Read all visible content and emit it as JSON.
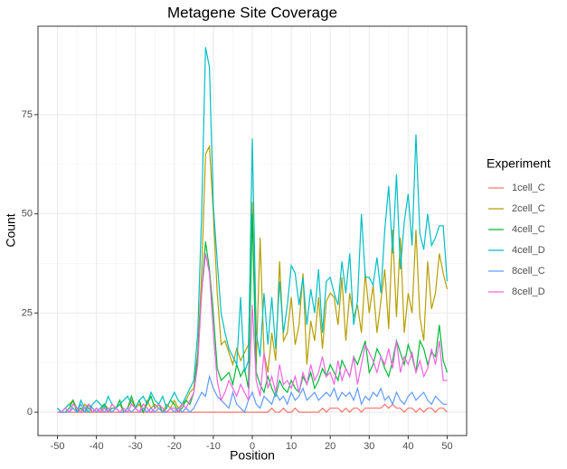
{
  "chart_data": {
    "type": "line",
    "title": "Metagene Site Coverage",
    "x_label": "Position",
    "y_label": "Count",
    "legend_title": "Experiment",
    "legend_position": "right",
    "grid": true,
    "minor_grid": true,
    "xlim": [
      -55,
      55
    ],
    "xticks": [
      -50,
      -40,
      -30,
      -20,
      -10,
      0,
      10,
      20,
      30,
      40,
      50
    ],
    "ylim": [
      -5.9,
      97.3
    ],
    "yticks": [
      0,
      25,
      50,
      75
    ],
    "x": [
      -50,
      -49,
      -48,
      -47,
      -46,
      -45,
      -44,
      -43,
      -42,
      -41,
      -40,
      -39,
      -38,
      -37,
      -36,
      -35,
      -34,
      -33,
      -32,
      -31,
      -30,
      -29,
      -28,
      -27,
      -26,
      -25,
      -24,
      -23,
      -22,
      -21,
      -20,
      -19,
      -18,
      -17,
      -16,
      -15,
      -14,
      -13,
      -12,
      -11,
      -10,
      -9,
      -8,
      -7,
      -6,
      -5,
      -4,
      -3,
      -2,
      -1,
      0,
      1,
      2,
      3,
      4,
      5,
      6,
      7,
      8,
      9,
      10,
      11,
      12,
      13,
      14,
      15,
      16,
      17,
      18,
      19,
      20,
      21,
      22,
      23,
      24,
      25,
      26,
      27,
      28,
      29,
      30,
      31,
      32,
      33,
      34,
      35,
      36,
      37,
      38,
      39,
      40,
      41,
      42,
      43,
      44,
      45,
      46,
      47,
      48,
      49,
      50
    ],
    "series": [
      {
        "name": "1cell_C",
        "color": "#F8766D",
        "values": [
          0,
          0,
          0,
          0,
          0,
          0,
          0,
          0,
          0,
          0,
          0,
          0,
          0,
          0,
          0,
          0,
          0,
          0,
          0,
          0,
          0,
          0,
          0,
          0,
          0,
          0,
          0,
          0,
          0,
          0,
          0,
          0,
          0,
          0,
          0,
          0,
          0,
          0,
          0,
          0,
          0,
          0,
          0,
          0,
          0,
          0,
          0,
          0,
          0,
          0,
          0,
          0,
          0,
          0,
          0,
          1,
          0,
          0,
          1,
          0,
          0,
          1,
          0,
          0,
          0,
          0,
          0,
          0,
          1,
          0,
          1,
          1,
          1,
          0,
          1,
          0,
          1,
          1,
          0,
          1,
          1,
          1,
          1,
          1,
          2,
          1,
          2,
          1,
          1,
          0,
          1,
          1,
          0,
          1,
          0,
          1,
          1,
          0,
          1,
          1,
          0
        ]
      },
      {
        "name": "2cell_C",
        "color": "#B79F00",
        "values": [
          0,
          0,
          1,
          2,
          3,
          1,
          0,
          2,
          1,
          0,
          1,
          0,
          2,
          1,
          0,
          1,
          2,
          0,
          1,
          3,
          1,
          2,
          0,
          3,
          1,
          2,
          1,
          0,
          2,
          1,
          3,
          1,
          2,
          3,
          5,
          6,
          15,
          35,
          65,
          67,
          50,
          30,
          17,
          18,
          15,
          12,
          16,
          13,
          15,
          17,
          53,
          12,
          44,
          15,
          10,
          20,
          13,
          38,
          18,
          20,
          29,
          17,
          22,
          35,
          12,
          23,
          18,
          29,
          16,
          28,
          30,
          29,
          22,
          34,
          18,
          30,
          24,
          27,
          20,
          35,
          25,
          32,
          20,
          28,
          36,
          21,
          46,
          24,
          44,
          20,
          30,
          25,
          46,
          24,
          18,
          38,
          26,
          30,
          40,
          35,
          31
        ]
      },
      {
        "name": "4cell_C",
        "color": "#00BA38",
        "values": [
          1,
          0,
          0,
          1,
          3,
          0,
          1,
          0,
          2,
          1,
          0,
          1,
          2,
          0,
          1,
          1,
          3,
          0,
          1,
          4,
          1,
          3,
          0,
          2,
          4,
          1,
          2,
          0,
          1,
          3,
          2,
          0,
          1,
          3,
          2,
          5,
          14,
          30,
          43,
          36,
          25,
          11,
          8,
          9,
          10,
          7,
          12,
          9,
          11,
          6,
          50,
          10,
          7,
          5,
          9,
          6,
          4,
          8,
          6,
          5,
          8,
          6,
          5,
          9,
          7,
          10,
          6,
          8,
          11,
          9,
          12,
          10,
          8,
          13,
          11,
          9,
          14,
          12,
          15,
          18,
          10,
          12,
          16,
          14,
          11,
          9,
          13,
          18,
          15,
          12,
          17,
          14,
          10,
          18,
          16,
          12,
          15,
          14,
          22,
          13,
          10
        ]
      },
      {
        "name": "4cell_D",
        "color": "#00BFC4",
        "values": [
          1,
          0,
          1,
          2,
          1,
          0,
          3,
          1,
          0,
          2,
          3,
          2,
          1,
          4,
          2,
          1,
          2,
          3,
          4,
          2,
          1,
          3,
          4,
          2,
          5,
          3,
          2,
          4,
          1,
          3,
          5,
          3,
          2,
          4,
          6,
          8,
          20,
          50,
          92,
          87,
          52,
          38,
          25,
          20,
          16,
          14,
          12,
          29,
          10,
          13,
          69,
          20,
          14,
          30,
          17,
          29,
          16,
          33,
          20,
          27,
          37,
          35,
          27,
          34,
          22,
          31,
          25,
          36,
          20,
          33,
          34,
          30,
          27,
          38,
          30,
          40,
          22,
          28,
          50,
          34,
          34,
          32,
          39,
          30,
          46,
          57,
          40,
          60,
          36,
          48,
          55,
          42,
          70,
          45,
          41,
          50,
          42,
          44,
          47,
          47,
          33
        ]
      },
      {
        "name": "8cell_C",
        "color": "#619CFF",
        "values": [
          0,
          0,
          0,
          0,
          1,
          0,
          2,
          0,
          1,
          1,
          0,
          1,
          0,
          1,
          0,
          1,
          0,
          0,
          1,
          0,
          1,
          0,
          1,
          0,
          1,
          0,
          1,
          0,
          0,
          1,
          0,
          1,
          0,
          1,
          0,
          1,
          3,
          5,
          4,
          9,
          6,
          4,
          3,
          2,
          1,
          5,
          2,
          1,
          0,
          3,
          5,
          2,
          1,
          4,
          3,
          2,
          5,
          3,
          4,
          2,
          5,
          3,
          4,
          6,
          3,
          4,
          5,
          3,
          4,
          5,
          4,
          6,
          3,
          5,
          4,
          5,
          3,
          6,
          2,
          4,
          3,
          5,
          4,
          6,
          3,
          4,
          2,
          5,
          3,
          2,
          4,
          5,
          3,
          4,
          5,
          3,
          2,
          4,
          3,
          2,
          2
        ]
      },
      {
        "name": "8cell_D",
        "color": "#F564E3",
        "values": [
          0,
          0,
          1,
          0,
          2,
          1,
          0,
          1,
          2,
          0,
          1,
          0,
          1,
          0,
          2,
          1,
          0,
          1,
          0,
          2,
          1,
          0,
          2,
          1,
          0,
          1,
          2,
          1,
          0,
          1,
          1,
          0,
          2,
          1,
          3,
          5,
          12,
          30,
          40,
          35,
          20,
          8,
          3,
          5,
          8,
          6,
          4,
          7,
          5,
          3,
          27,
          8,
          4,
          15,
          6,
          9,
          5,
          12,
          7,
          8,
          6,
          9,
          5,
          10,
          7,
          12,
          8,
          10,
          14,
          9,
          10,
          7,
          13,
          8,
          11,
          9,
          14,
          7,
          12,
          17,
          15,
          13,
          10,
          14,
          12,
          16,
          11,
          18,
          10,
          14,
          12,
          15,
          10,
          13,
          9,
          11,
          16,
          12,
          18,
          8,
          8
        ]
      }
    ]
  }
}
